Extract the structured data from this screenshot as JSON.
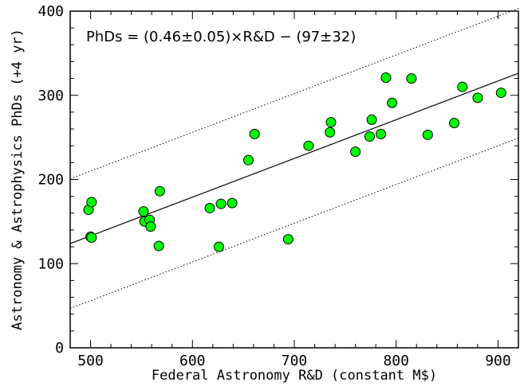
{
  "chart_data": {
    "type": "scatter",
    "title": "",
    "xlabel": "Federal Astronomy R&D (constant M$)",
    "ylabel": "Astronomy & Astrophysics PhDs (+4 yr)",
    "annotation": "PhDs = (0.46±0.05)×R&D − (97±32)",
    "xlim": [
      480,
      920
    ],
    "ylim": [
      0,
      400
    ],
    "x_ticks": [
      500,
      600,
      700,
      800,
      900
    ],
    "y_ticks": [
      0,
      100,
      200,
      300,
      400
    ],
    "x_tick_labels": [
      "500",
      "600",
      "700",
      "800",
      "900"
    ],
    "y_tick_labels": [
      "0",
      "100",
      "200",
      "300",
      "400"
    ],
    "grid": false,
    "marker_color": "#00ff00",
    "fit_line": {
      "slope": 0.46,
      "intercept": -97,
      "offset": 77,
      "style": "solid"
    },
    "band_lines_style": "dotted",
    "points": [
      {
        "x": 498,
        "y": 164
      },
      {
        "x": 500,
        "y": 132
      },
      {
        "x": 501,
        "y": 131
      },
      {
        "x": 501,
        "y": 173
      },
      {
        "x": 552,
        "y": 162
      },
      {
        "x": 553,
        "y": 150
      },
      {
        "x": 558,
        "y": 152
      },
      {
        "x": 559,
        "y": 144
      },
      {
        "x": 567,
        "y": 121
      },
      {
        "x": 568,
        "y": 186
      },
      {
        "x": 617,
        "y": 166
      },
      {
        "x": 626,
        "y": 120
      },
      {
        "x": 628,
        "y": 171
      },
      {
        "x": 639,
        "y": 172
      },
      {
        "x": 655,
        "y": 223
      },
      {
        "x": 661,
        "y": 254
      },
      {
        "x": 694,
        "y": 129
      },
      {
        "x": 714,
        "y": 240
      },
      {
        "x": 735,
        "y": 256
      },
      {
        "x": 736,
        "y": 268
      },
      {
        "x": 760,
        "y": 233
      },
      {
        "x": 774,
        "y": 251
      },
      {
        "x": 776,
        "y": 271
      },
      {
        "x": 785,
        "y": 254
      },
      {
        "x": 790,
        "y": 321
      },
      {
        "x": 796,
        "y": 291
      },
      {
        "x": 815,
        "y": 320
      },
      {
        "x": 831,
        "y": 253
      },
      {
        "x": 857,
        "y": 267
      },
      {
        "x": 865,
        "y": 310
      },
      {
        "x": 880,
        "y": 297
      },
      {
        "x": 903,
        "y": 303
      }
    ]
  }
}
